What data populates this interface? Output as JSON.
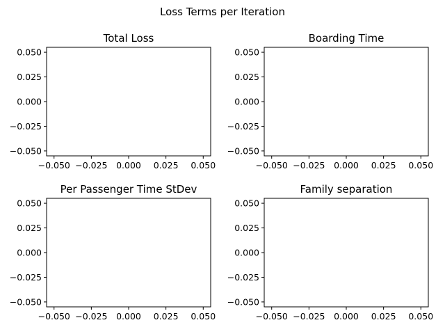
{
  "figure": {
    "suptitle": "Loss Terms per Iteration"
  },
  "chart_data": [
    {
      "type": "line",
      "title": "Total Loss",
      "xlabel": "",
      "ylabel": "",
      "series": [],
      "xlim": [
        -0.055,
        0.055
      ],
      "ylim": [
        -0.055,
        0.055
      ],
      "xticks": [
        -0.05,
        -0.025,
        0.0,
        0.025,
        0.05
      ],
      "yticks": [
        -0.05,
        -0.025,
        0.0,
        0.025,
        0.05
      ],
      "xtick_labels": [
        "−0.050",
        "−0.025",
        "0.000",
        "0.025",
        "0.050"
      ],
      "ytick_labels": [
        "−0.050",
        "−0.025",
        "0.000",
        "0.025",
        "0.050"
      ],
      "grid": false
    },
    {
      "type": "line",
      "title": "Boarding Time",
      "xlabel": "",
      "ylabel": "",
      "series": [],
      "xlim": [
        -0.055,
        0.055
      ],
      "ylim": [
        -0.055,
        0.055
      ],
      "xticks": [
        -0.05,
        -0.025,
        0.0,
        0.025,
        0.05
      ],
      "yticks": [
        -0.05,
        -0.025,
        0.0,
        0.025,
        0.05
      ],
      "xtick_labels": [
        "−0.050",
        "−0.025",
        "0.000",
        "0.025",
        "0.050"
      ],
      "ytick_labels": [
        "−0.050",
        "−0.025",
        "0.000",
        "0.025",
        "0.050"
      ],
      "grid": false
    },
    {
      "type": "line",
      "title": "Per Passenger Time StDev",
      "xlabel": "",
      "ylabel": "",
      "series": [],
      "xlim": [
        -0.055,
        0.055
      ],
      "ylim": [
        -0.055,
        0.055
      ],
      "xticks": [
        -0.05,
        -0.025,
        0.0,
        0.025,
        0.05
      ],
      "yticks": [
        -0.05,
        -0.025,
        0.0,
        0.025,
        0.05
      ],
      "xtick_labels": [
        "−0.050",
        "−0.025",
        "0.000",
        "0.025",
        "0.050"
      ],
      "ytick_labels": [
        "−0.050",
        "−0.025",
        "0.000",
        "0.025",
        "0.050"
      ],
      "grid": false
    },
    {
      "type": "line",
      "title": "Family separation",
      "xlabel": "",
      "ylabel": "",
      "series": [],
      "xlim": [
        -0.055,
        0.055
      ],
      "ylim": [
        -0.055,
        0.055
      ],
      "xticks": [
        -0.05,
        -0.025,
        0.0,
        0.025,
        0.05
      ],
      "yticks": [
        -0.05,
        -0.025,
        0.0,
        0.025,
        0.05
      ],
      "xtick_labels": [
        "−0.050",
        "−0.025",
        "0.000",
        "0.025",
        "0.050"
      ],
      "ytick_labels": [
        "−0.050",
        "−0.025",
        "0.000",
        "0.025",
        "0.050"
      ],
      "grid": false
    }
  ]
}
